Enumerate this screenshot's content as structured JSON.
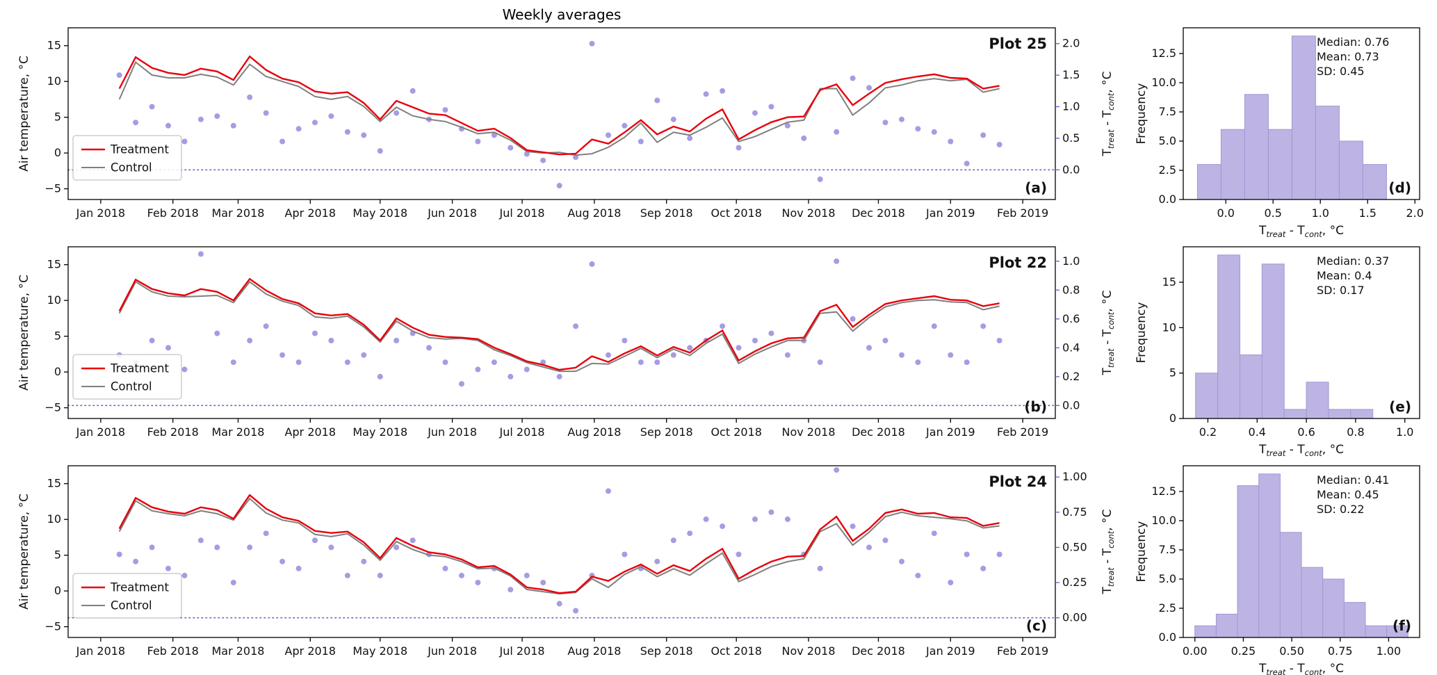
{
  "colors": {
    "treatment": "#e8000b",
    "control": "#7f7f7f",
    "purple": "#6a5acd",
    "scatter": "#8d80da",
    "hist_fill": "#bdb4e4",
    "hist_edge": "#a296d4",
    "spine": "#000000",
    "text": "#111111"
  },
  "chart_data": {
    "type": "multi-panel (line + scatter + histogram)",
    "title": "Weekly averages",
    "legend": [
      "Treatment",
      "Control"
    ],
    "diff_label_parts": [
      {
        "t": "T"
      },
      {
        "t": "treat",
        "sub": true
      },
      {
        "t": " - T"
      },
      {
        "t": "cont",
        "sub": true
      },
      {
        "t": ", °C"
      }
    ],
    "x_axis": {
      "unit": "days since 2018-01-01",
      "lim": [
        -14,
        410
      ],
      "ticks": [
        {
          "day": 0,
          "label": "Jan 2018"
        },
        {
          "day": 31,
          "label": "Feb 2018"
        },
        {
          "day": 59,
          "label": "Mar 2018"
        },
        {
          "day": 90,
          "label": "Apr 2018"
        },
        {
          "day": 120,
          "label": "May 2018"
        },
        {
          "day": 151,
          "label": "Jun 2018"
        },
        {
          "day": 181,
          "label": "Jul 2018"
        },
        {
          "day": 212,
          "label": "Aug 2018"
        },
        {
          "day": 243,
          "label": "Sep 2018"
        },
        {
          "day": 273,
          "label": "Oct 2018"
        },
        {
          "day": 304,
          "label": "Nov 2018"
        },
        {
          "day": 334,
          "label": "Dec 2018"
        },
        {
          "day": 365,
          "label": "Jan 2019"
        },
        {
          "day": 396,
          "label": "Feb 2019"
        }
      ]
    },
    "x_days": [
      8,
      15,
      22,
      29,
      36,
      43,
      50,
      57,
      64,
      71,
      78,
      85,
      92,
      99,
      106,
      113,
      120,
      127,
      134,
      141,
      148,
      155,
      162,
      169,
      176,
      183,
      190,
      197,
      204,
      211,
      218,
      225,
      232,
      239,
      246,
      253,
      260,
      267,
      274,
      281,
      288,
      295,
      302,
      309,
      316,
      323,
      330,
      337,
      344,
      351,
      358,
      365,
      372,
      379,
      386
    ],
    "rows": [
      {
        "plot_label": "Plot 25",
        "panel_letter": "(a)",
        "hist_letter": "(d)",
        "left_axis": {
          "label": "Air temperature, °C",
          "tick_values": [
            -5,
            0,
            5,
            10,
            15
          ],
          "tick_labels": [
            "−5",
            "0",
            "5",
            "10",
            "15"
          ],
          "lim": [
            -6.5,
            17.5
          ]
        },
        "right_axis": {
          "tick_values": [
            0,
            0.5,
            1,
            1.5,
            2
          ],
          "tick_labels": [
            "0.0",
            "0.5",
            "1.0",
            "1.5",
            "2.0"
          ],
          "lim": [
            -0.47,
            2.25
          ]
        },
        "treatment": [
          9.0,
          13.4,
          11.9,
          11.2,
          10.9,
          11.8,
          11.4,
          10.2,
          13.5,
          11.6,
          10.4,
          9.9,
          8.6,
          8.3,
          8.5,
          7.0,
          4.7,
          7.3,
          6.4,
          5.5,
          5.3,
          4.2,
          3.1,
          3.4,
          2.1,
          0.4,
          0.1,
          -0.2,
          -0.1,
          1.9,
          1.3,
          2.9,
          4.6,
          2.6,
          3.7,
          3.0,
          4.8,
          6.1,
          1.9,
          3.2,
          4.3,
          5.0,
          5.1,
          8.8,
          9.6,
          6.7,
          8.3,
          9.8,
          10.3,
          10.7,
          11.0,
          10.5,
          10.4,
          9.0,
          9.4
        ],
        "control": [
          7.5,
          12.7,
          10.9,
          10.5,
          10.5,
          11.0,
          10.6,
          9.5,
          12.4,
          10.7,
          10.0,
          9.3,
          7.9,
          7.5,
          7.9,
          6.5,
          4.4,
          6.4,
          5.2,
          4.7,
          4.4,
          3.6,
          2.7,
          2.9,
          1.8,
          0.2,
          0.0,
          0.1,
          -0.3,
          -0.1,
          0.8,
          2.2,
          4.2,
          1.5,
          2.9,
          2.5,
          3.6,
          4.9,
          1.6,
          2.3,
          3.3,
          4.3,
          4.6,
          9.0,
          9.0,
          5.3,
          7.0,
          9.1,
          9.5,
          10.1,
          10.4,
          10.1,
          10.3,
          8.5,
          9.0
        ],
        "diff": [
          1.5,
          0.75,
          1.0,
          0.7,
          0.45,
          0.8,
          0.85,
          0.7,
          1.15,
          0.9,
          0.45,
          0.65,
          0.75,
          0.85,
          0.6,
          0.55,
          0.3,
          0.9,
          1.25,
          0.8,
          0.95,
          0.65,
          0.45,
          0.55,
          0.35,
          0.25,
          0.15,
          -0.25,
          0.2,
          2.0,
          0.55,
          0.7,
          0.45,
          1.1,
          0.8,
          0.5,
          1.2,
          1.25,
          0.35,
          0.9,
          1.0,
          0.7,
          0.5,
          -0.15,
          0.6,
          1.45,
          1.3,
          0.75,
          0.8,
          0.65,
          0.6,
          0.45,
          0.1,
          0.55,
          0.4
        ],
        "hist": {
          "type": "bar",
          "bin_edges": [
            -0.3,
            -0.05,
            0.2,
            0.45,
            0.7,
            0.95,
            1.2,
            1.45,
            1.7
          ],
          "counts": [
            3,
            6,
            9,
            6,
            14,
            8,
            5,
            3
          ],
          "xtick_values": [
            0,
            0.5,
            1,
            1.5,
            2
          ],
          "xtick_labels": [
            "0.0",
            "0.5",
            "1.0",
            "1.5",
            "2.0"
          ],
          "ytick_values": [
            0,
            2.5,
            5,
            7.5,
            10,
            12.5
          ],
          "ytick_labels": [
            "0.0",
            "2.5",
            "5.0",
            "7.5",
            "10.0",
            "12.5"
          ],
          "xlim": [
            -0.45,
            2.05
          ],
          "ylim": [
            0,
            14.7
          ],
          "ylabel": "Frequency",
          "stats": [
            "Median: 0.76",
            "Mean: 0.73",
            "SD: 0.45"
          ]
        }
      },
      {
        "plot_label": "Plot 22",
        "panel_letter": "(b)",
        "hist_letter": "(e)",
        "left_axis": {
          "label": "Air temperature, °C",
          "tick_values": [
            -5,
            0,
            5,
            10,
            15
          ],
          "tick_labels": [
            "−5",
            "0",
            "5",
            "10",
            "15"
          ],
          "lim": [
            -6.5,
            17.5
          ]
        },
        "right_axis": {
          "tick_values": [
            0,
            0.2,
            0.4,
            0.6,
            0.8,
            1
          ],
          "tick_labels": [
            "0.0",
            "0.2",
            "0.4",
            "0.6",
            "0.8",
            "1.0"
          ],
          "lim": [
            -0.09,
            1.1
          ]
        },
        "treatment": [
          8.5,
          12.9,
          11.6,
          11.0,
          10.7,
          11.6,
          11.2,
          10.0,
          13.0,
          11.4,
          10.2,
          9.6,
          8.2,
          7.9,
          8.1,
          6.6,
          4.4,
          7.5,
          6.2,
          5.2,
          4.9,
          4.8,
          4.6,
          3.4,
          2.5,
          1.5,
          1.0,
          0.3,
          0.6,
          2.2,
          1.4,
          2.6,
          3.6,
          2.3,
          3.5,
          2.7,
          4.4,
          5.8,
          1.6,
          2.9,
          4.0,
          4.7,
          4.8,
          8.5,
          9.4,
          6.3,
          8.0,
          9.5,
          10.0,
          10.3,
          10.6,
          10.1,
          10.0,
          9.2,
          9.6
        ],
        "control": [
          8.2,
          12.6,
          11.2,
          10.6,
          10.5,
          10.6,
          10.7,
          9.7,
          12.6,
          10.9,
          9.9,
          9.3,
          7.7,
          7.5,
          7.8,
          6.3,
          4.2,
          7.1,
          5.7,
          4.8,
          4.6,
          4.7,
          4.4,
          3.1,
          2.3,
          1.3,
          0.7,
          0.1,
          0.1,
          1.2,
          1.1,
          2.2,
          3.3,
          2.0,
          3.2,
          2.3,
          4.0,
          5.3,
          1.2,
          2.5,
          3.5,
          4.4,
          4.4,
          8.2,
          8.4,
          5.7,
          7.6,
          9.1,
          9.7,
          10.0,
          10.1,
          9.8,
          9.7,
          8.7,
          9.2
        ],
        "diff": [
          0.35,
          0.3,
          0.45,
          0.4,
          0.25,
          1.05,
          0.5,
          0.3,
          0.45,
          0.55,
          0.35,
          0.3,
          0.5,
          0.45,
          0.3,
          0.35,
          0.2,
          0.45,
          0.5,
          0.4,
          0.3,
          0.15,
          0.25,
          0.3,
          0.2,
          0.25,
          0.3,
          0.2,
          0.55,
          0.98,
          0.35,
          0.45,
          0.3,
          0.3,
          0.35,
          0.4,
          0.45,
          0.55,
          0.4,
          0.45,
          0.5,
          0.35,
          0.45,
          0.3,
          1.0,
          0.6,
          0.4,
          0.45,
          0.35,
          0.3,
          0.55,
          0.35,
          0.3,
          0.55,
          0.45
        ],
        "hist": {
          "type": "bar",
          "bin_edges": [
            0.15,
            0.24,
            0.33,
            0.42,
            0.51,
            0.6,
            0.69,
            0.78,
            0.87
          ],
          "counts": [
            5,
            18,
            7,
            17,
            1,
            4,
            1,
            1
          ],
          "xtick_values": [
            0.2,
            0.4,
            0.6,
            0.8,
            1
          ],
          "xtick_labels": [
            "0.2",
            "0.4",
            "0.6",
            "0.8",
            "1.0"
          ],
          "ytick_values": [
            0,
            5,
            10,
            15
          ],
          "ytick_labels": [
            "0",
            "5",
            "10",
            "15"
          ],
          "xlim": [
            0.1,
            1.06
          ],
          "ylim": [
            0,
            18.9
          ],
          "ylabel": "Frequency",
          "stats": [
            "Median: 0.37",
            "Mean: 0.4",
            "SD: 0.17"
          ]
        }
      },
      {
        "plot_label": "Plot 24",
        "panel_letter": "(c)",
        "hist_letter": "(f)",
        "left_axis": {
          "label": "Air temperature, °C",
          "tick_values": [
            -5,
            0,
            5,
            10,
            15
          ],
          "tick_labels": [
            "−5",
            "0",
            "5",
            "10",
            "15"
          ],
          "lim": [
            -6.5,
            17.5
          ]
        },
        "right_axis": {
          "tick_values": [
            0,
            0.25,
            0.5,
            0.75,
            1
          ],
          "tick_labels": [
            "0.00",
            "0.25",
            "0.50",
            "0.75",
            "1.00"
          ],
          "lim": [
            -0.14,
            1.08
          ]
        },
        "treatment": [
          8.7,
          13.0,
          11.7,
          11.1,
          10.8,
          11.7,
          11.3,
          10.1,
          13.4,
          11.5,
          10.3,
          9.8,
          8.4,
          8.1,
          8.3,
          6.8,
          4.6,
          7.4,
          6.3,
          5.4,
          5.1,
          4.4,
          3.3,
          3.5,
          2.3,
          0.5,
          0.2,
          -0.3,
          -0.1,
          2.0,
          1.4,
          2.7,
          3.7,
          2.4,
          3.6,
          2.8,
          4.5,
          5.9,
          1.7,
          3.0,
          4.1,
          4.8,
          4.9,
          8.6,
          10.4,
          7.0,
          8.7,
          10.9,
          11.4,
          10.8,
          10.9,
          10.3,
          10.2,
          9.1,
          9.5
        ],
        "control": [
          8.3,
          12.6,
          11.2,
          10.8,
          10.5,
          11.2,
          10.8,
          9.9,
          12.9,
          10.9,
          9.9,
          9.5,
          7.9,
          7.6,
          8.0,
          6.4,
          4.3,
          6.9,
          5.8,
          5.0,
          4.8,
          4.1,
          3.1,
          3.2,
          2.1,
          0.2,
          -0.1,
          -0.4,
          -0.2,
          1.7,
          0.5,
          2.3,
          3.4,
          2.0,
          3.1,
          2.2,
          3.8,
          5.3,
          1.3,
          2.3,
          3.4,
          4.1,
          4.5,
          8.3,
          9.4,
          6.4,
          8.2,
          10.4,
          11.0,
          10.5,
          10.3,
          10.1,
          9.8,
          8.8,
          9.1
        ],
        "diff": [
          0.45,
          0.4,
          0.5,
          0.35,
          0.3,
          0.55,
          0.5,
          0.25,
          0.5,
          0.6,
          0.4,
          0.35,
          0.55,
          0.5,
          0.3,
          0.4,
          0.3,
          0.5,
          0.55,
          0.45,
          0.35,
          0.3,
          0.25,
          0.35,
          0.2,
          0.3,
          0.25,
          0.1,
          0.05,
          0.3,
          0.9,
          0.45,
          0.35,
          0.4,
          0.55,
          0.6,
          0.7,
          0.65,
          0.45,
          0.7,
          0.75,
          0.7,
          0.45,
          0.35,
          1.05,
          0.65,
          0.5,
          0.55,
          0.4,
          0.3,
          0.6,
          0.25,
          0.45,
          0.35,
          0.45
        ],
        "hist": {
          "type": "bar",
          "bin_edges": [
            0,
            0.11,
            0.22,
            0.33,
            0.44,
            0.55,
            0.66,
            0.77,
            0.88,
            0.99,
            1.1
          ],
          "counts": [
            1,
            2,
            13,
            14,
            9,
            6,
            5,
            3,
            1,
            1
          ],
          "xtick_values": [
            0,
            0.25,
            0.5,
            0.75,
            1
          ],
          "xtick_labels": [
            "0.00",
            "0.25",
            "0.50",
            "0.75",
            "1.00"
          ],
          "ytick_values": [
            0,
            2.5,
            5,
            7.5,
            10,
            12.5
          ],
          "ytick_labels": [
            "0.0",
            "2.5",
            "5.0",
            "7.5",
            "10.0",
            "12.5"
          ],
          "xlim": [
            -0.06,
            1.16
          ],
          "ylim": [
            0,
            14.7
          ],
          "ylabel": "Frequency",
          "stats": [
            "Median: 0.41",
            "Mean: 0.45",
            "SD: 0.22"
          ]
        }
      }
    ]
  }
}
